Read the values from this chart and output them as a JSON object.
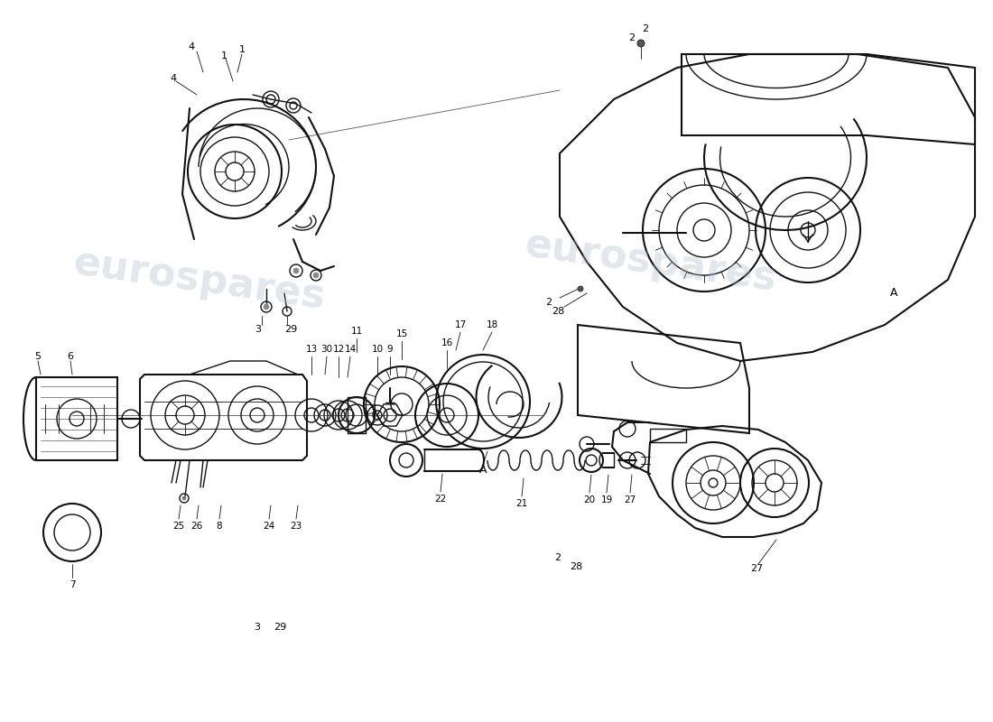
{
  "bg_color": "#ffffff",
  "line_color": "#111111",
  "watermark_text": "eurospares",
  "watermark_color": "#aabbcc",
  "watermark_alpha": 0.35,
  "fig_width": 11.0,
  "fig_height": 8.0,
  "dpi": 100
}
